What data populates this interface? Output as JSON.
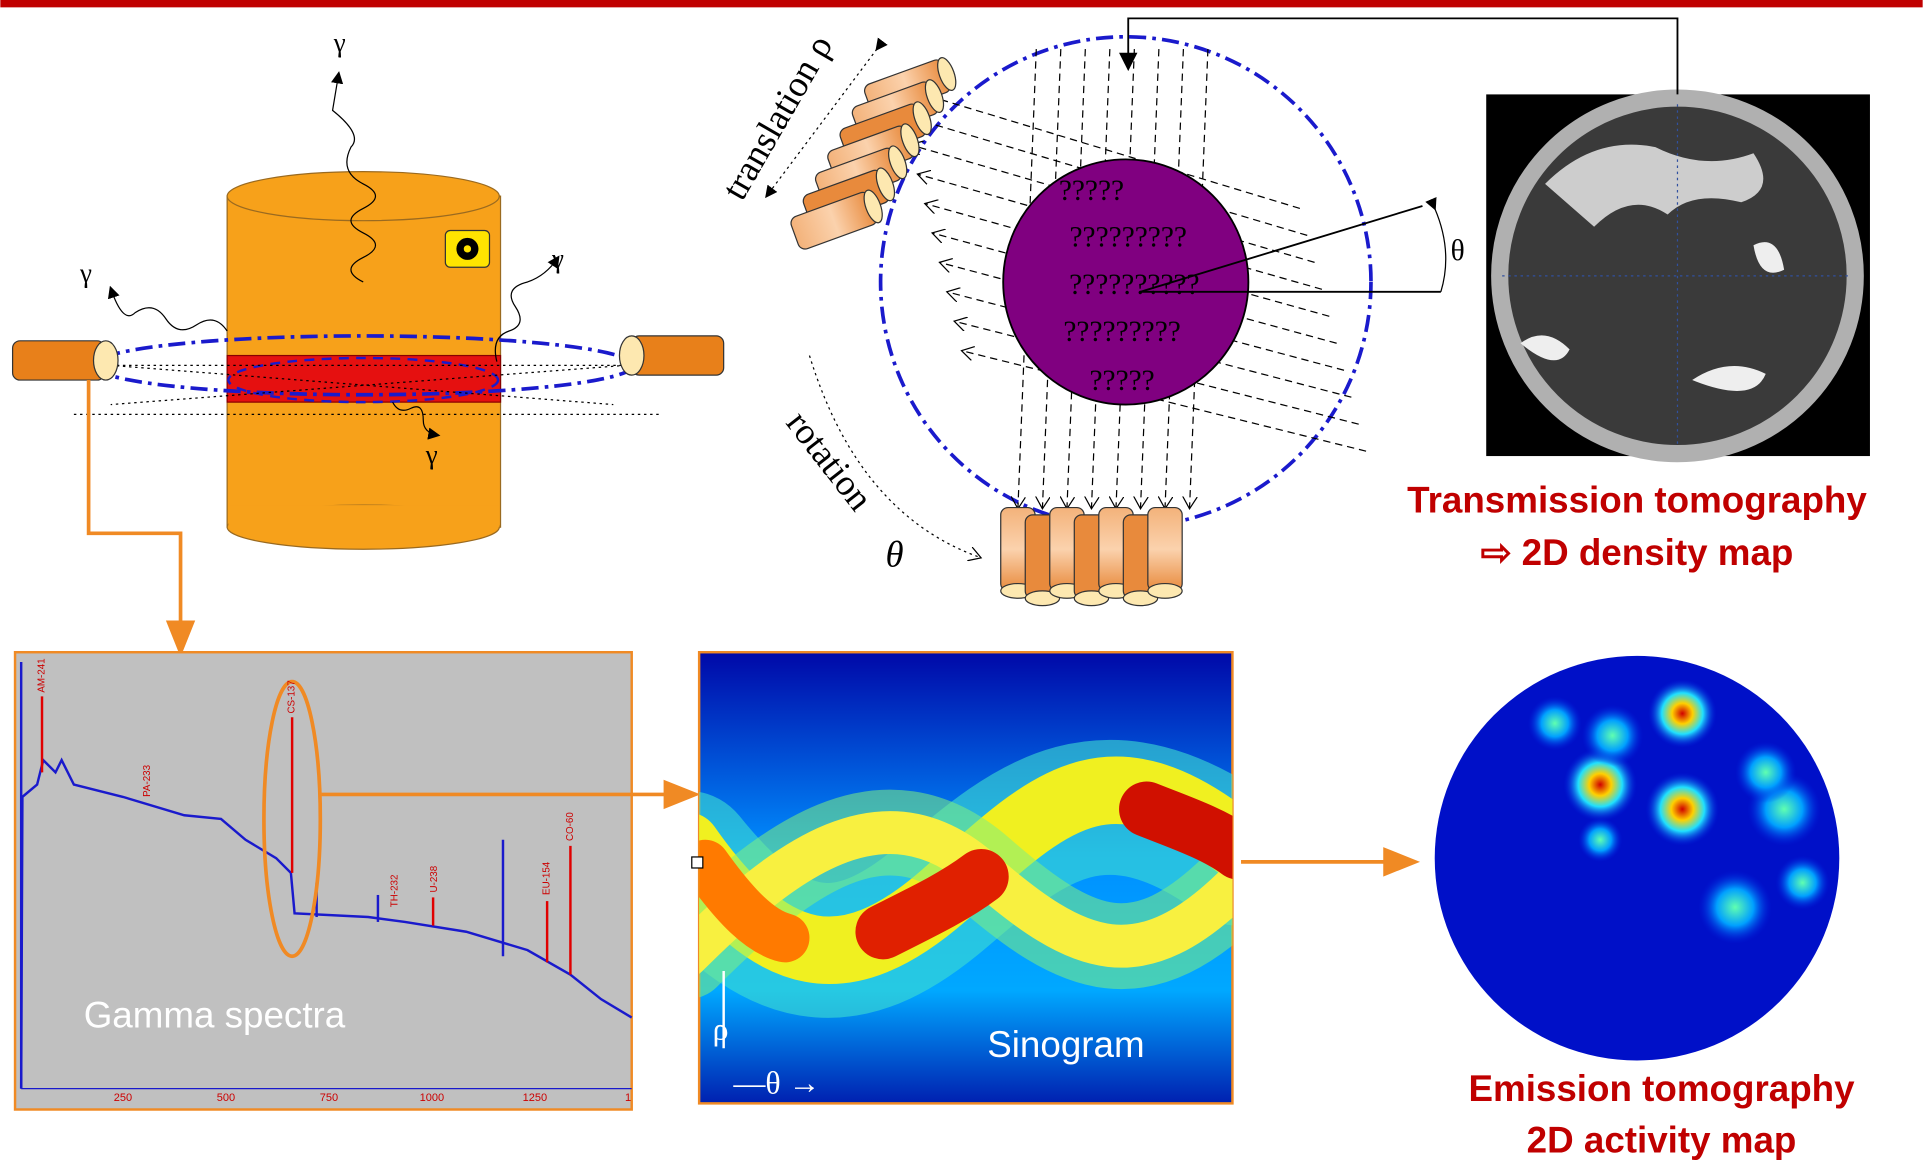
{
  "gamma_labels": [
    "γ",
    "γ",
    "γ",
    "γ"
  ],
  "scanner": {
    "translation": "translation ρ",
    "rotation": "rotation",
    "rotation_symbol": "θ",
    "angle": "θ",
    "object_text": [
      "?????",
      "?????????",
      "??????????",
      "?????????",
      "?????"
    ]
  },
  "transmission": {
    "title": "Transmission tomography",
    "subtitle": "⇨ 2D density map"
  },
  "emission": {
    "title": "Emission tomography",
    "subtitle": "2D activity map"
  },
  "spectrum": {
    "label": "Gamma spectra",
    "peaks": [
      "AM-241",
      "PA-233",
      "CS-137",
      "TH-232",
      "U-238",
      "EU-154",
      "CO-60"
    ],
    "x_ticks": [
      "250",
      "500",
      "750",
      "1000",
      "1250",
      "1"
    ]
  },
  "sinogram": {
    "label": "Sinogram",
    "rho": "ρ",
    "theta": "—θ →"
  }
}
